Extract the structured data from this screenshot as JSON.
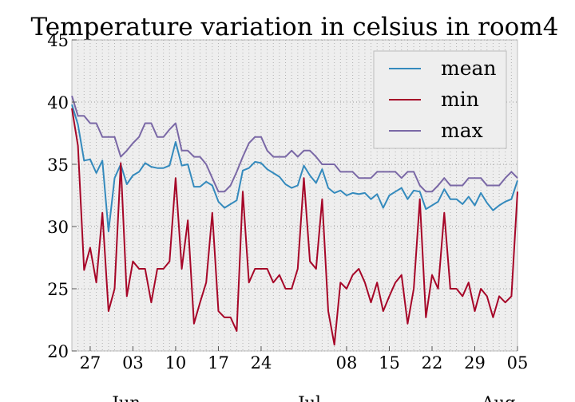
{
  "chart_data": {
    "type": "line",
    "title": "Temperature variation in celsius in room4",
    "xlabel": "",
    "ylabel": "",
    "ylim": [
      20,
      45
    ],
    "yticks": [
      "20",
      "25",
      "30",
      "35",
      "40",
      "45"
    ],
    "xlim": [
      0,
      73
    ],
    "xticks": [
      {
        "label": "27",
        "x": 3
      },
      {
        "label": "03",
        "x": 10
      },
      {
        "label": "10",
        "x": 17
      },
      {
        "label": "17",
        "x": 24
      },
      {
        "label": "24",
        "x": 31
      },
      {
        "label": "08",
        "x": 45
      },
      {
        "label": "15",
        "x": 52
      },
      {
        "label": "22",
        "x": 59
      },
      {
        "label": "29",
        "x": 66
      },
      {
        "label": "05",
        "x": 73
      }
    ],
    "month_labels": [
      {
        "label": "Jun",
        "x": 8
      },
      {
        "label": "Jul",
        "x": 38
      },
      {
        "label": "Aug",
        "x": 69
      }
    ],
    "grid": true,
    "legend_position": "top-right",
    "colors": {
      "mean": "#348abd",
      "min": "#a60628",
      "max": "#7a68a6",
      "plot_bg": "#eeeeee",
      "grid": "#999999"
    },
    "series": [
      {
        "name": "mean",
        "values": [
          39.8,
          38.2,
          35.3,
          35.4,
          34.3,
          35.3,
          29.6,
          33.9,
          35.0,
          33.4,
          34.1,
          34.4,
          35.1,
          34.8,
          34.7,
          34.7,
          34.9,
          36.8,
          34.9,
          35.0,
          33.2,
          33.2,
          33.6,
          33.3,
          32.0,
          31.5,
          31.8,
          32.1,
          34.5,
          34.7,
          35.2,
          35.1,
          34.6,
          34.3,
          34.0,
          33.4,
          33.1,
          33.3,
          34.9,
          34.1,
          33.5,
          34.6,
          33.1,
          32.7,
          32.9,
          32.5,
          32.7,
          32.6,
          32.7,
          32.2,
          32.6,
          31.5,
          32.5,
          32.8,
          33.1,
          32.2,
          32.9,
          32.8,
          31.4,
          31.7,
          32.0,
          33.0,
          32.2,
          32.2,
          31.8,
          32.4,
          31.7,
          32.7,
          31.9,
          31.3,
          31.7,
          32.0,
          32.2,
          33.7
        ]
      },
      {
        "name": "min",
        "values": [
          39.5,
          36.5,
          26.5,
          28.3,
          25.5,
          31.1,
          23.2,
          25.0,
          35.1,
          24.4,
          27.2,
          26.6,
          26.6,
          23.9,
          26.6,
          26.6,
          27.2,
          33.9,
          26.6,
          30.5,
          22.2,
          23.9,
          25.5,
          31.1,
          23.2,
          22.7,
          22.7,
          21.6,
          32.8,
          25.5,
          26.6,
          26.6,
          26.6,
          25.5,
          26.1,
          25.0,
          25.0,
          26.6,
          33.9,
          27.2,
          26.6,
          32.2,
          23.2,
          20.5,
          25.5,
          25.0,
          26.1,
          26.6,
          25.5,
          23.9,
          25.5,
          23.2,
          24.4,
          25.5,
          26.1,
          22.2,
          25.0,
          32.2,
          22.7,
          26.1,
          25.0,
          31.1,
          25.0,
          25.0,
          24.4,
          25.5,
          23.2,
          25.0,
          24.4,
          22.7,
          24.4,
          23.9,
          24.4,
          32.8
        ]
      },
      {
        "name": "max",
        "values": [
          40.5,
          38.9,
          38.9,
          38.3,
          38.3,
          37.2,
          37.2,
          37.2,
          35.6,
          36.1,
          36.7,
          37.2,
          38.3,
          38.3,
          37.2,
          37.2,
          37.8,
          38.3,
          36.1,
          36.1,
          35.6,
          35.6,
          35.0,
          33.9,
          32.8,
          32.8,
          33.3,
          34.4,
          35.6,
          36.7,
          37.2,
          37.2,
          36.1,
          35.6,
          35.6,
          35.6,
          36.1,
          35.6,
          36.1,
          36.1,
          35.6,
          35.0,
          35.0,
          35.0,
          34.4,
          34.4,
          34.4,
          33.9,
          33.9,
          33.9,
          34.4,
          34.4,
          34.4,
          34.4,
          33.9,
          34.4,
          34.4,
          33.3,
          32.8,
          32.8,
          33.3,
          33.9,
          33.3,
          33.3,
          33.3,
          33.9,
          33.9,
          33.9,
          33.3,
          33.3,
          33.3,
          33.9,
          34.4,
          33.9
        ]
      }
    ]
  }
}
